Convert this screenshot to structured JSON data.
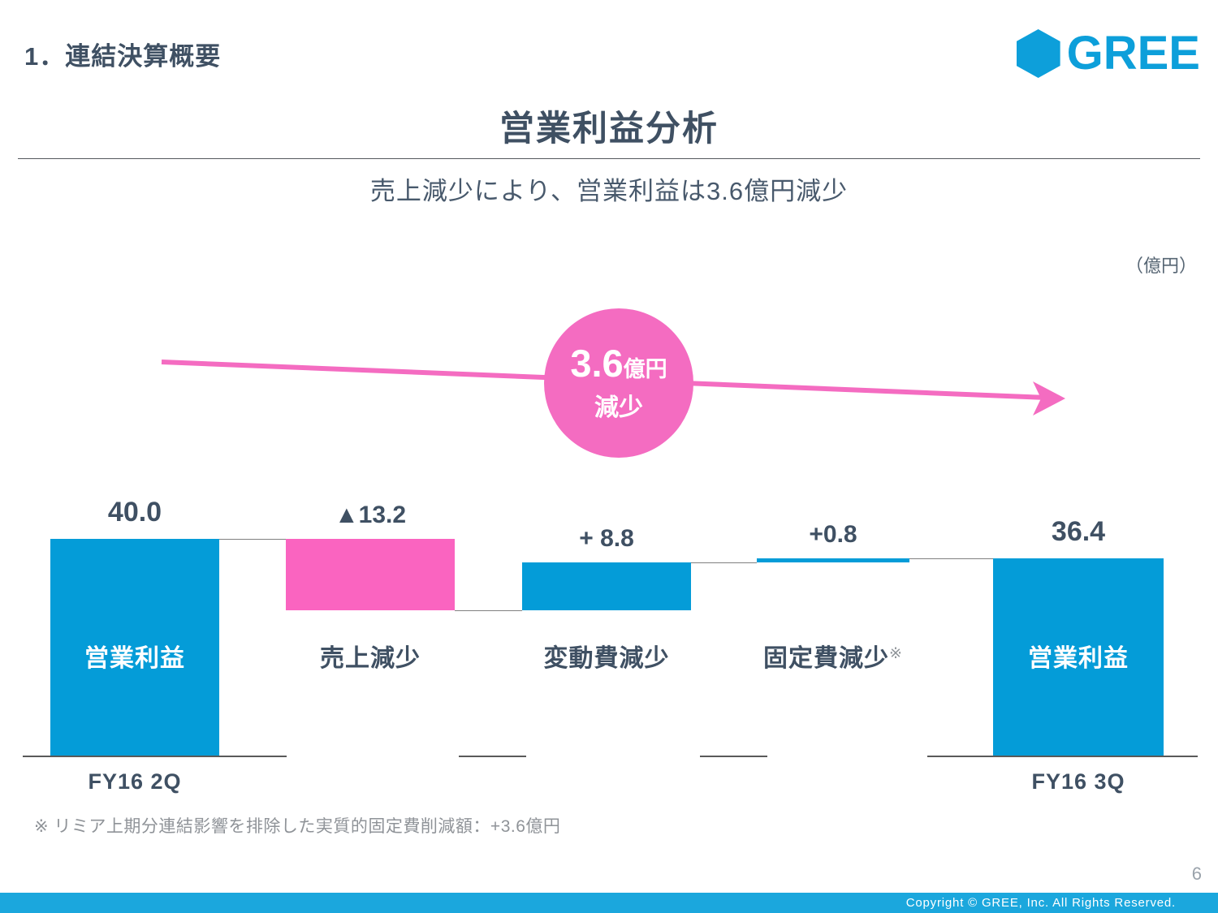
{
  "slide": {
    "section_title": "1．連結決算概要",
    "page_title": "営業利益分析",
    "subtitle": "売上減少により、営業利益は3.6億円減少",
    "unit_label": "（億円）",
    "footnote": "※ リミア上期分連結影響を排除した実質的固定費削減額：+3.6億円",
    "page_number": "6",
    "footer_copyright": "Copyright © GREE, Inc. All Rights Reserved.",
    "logo_text": "GREE"
  },
  "annotation": {
    "value": "3.6",
    "unit": "億円",
    "label": "減少"
  },
  "chart_data": {
    "type": "bar",
    "subtype": "waterfall",
    "unit": "億円",
    "ylim": [
      0,
      40
    ],
    "grid": false,
    "legend": false,
    "columns": [
      {
        "name": "営業利益",
        "name_suffix": "",
        "axis_label": "FY16 2Q",
        "kind": "total",
        "value": 40.0,
        "label": "40.0",
        "color": "blue"
      },
      {
        "name": "売上減少",
        "name_suffix": "",
        "axis_label": "",
        "kind": "delta",
        "value": -13.2,
        "label": "▲13.2",
        "color": "pink"
      },
      {
        "name": "変動費減少",
        "name_suffix": "",
        "axis_label": "",
        "kind": "delta",
        "value": 8.8,
        "label": "+ 8.8",
        "color": "blue"
      },
      {
        "name": "固定費減少",
        "name_suffix": "※",
        "axis_label": "",
        "kind": "delta",
        "value": 0.8,
        "label": "+0.8",
        "color": "blue"
      },
      {
        "name": "営業利益",
        "name_suffix": "",
        "axis_label": "FY16 3Q",
        "kind": "total",
        "value": 36.4,
        "label": "36.4",
        "color": "blue"
      }
    ]
  },
  "colors": {
    "bar_blue": "#049cd8",
    "bar_pink": "#fa64c0",
    "annotation_pink": "#f46cc1",
    "slate_text": "#3f5063",
    "logo_blue": "#0d9fda",
    "footer_blue": "#1ba7dd",
    "footnote_gray": "#8f9398",
    "connector_gray": "#808080",
    "baseline_gray": "#595959"
  }
}
